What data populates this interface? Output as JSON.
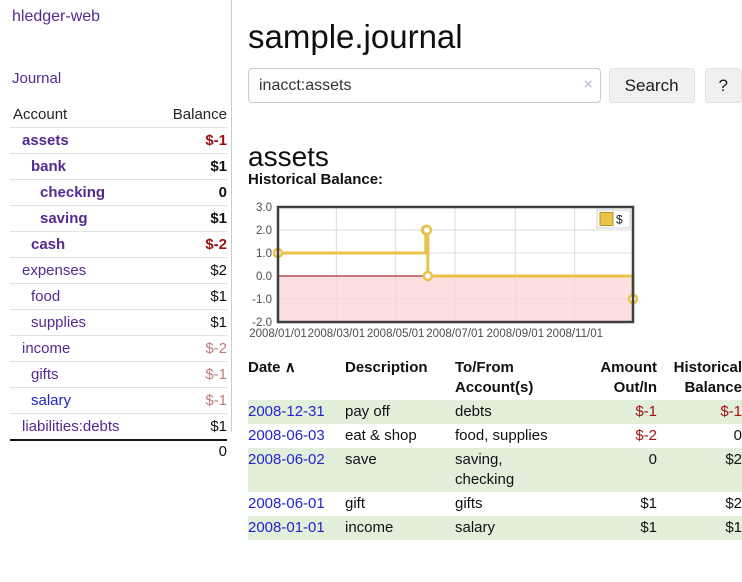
{
  "app": {
    "brand": "hledger-web"
  },
  "sidebar": {
    "journal_link": "Journal",
    "accounts_table": {
      "headers": {
        "account": "Account",
        "balance": "Balance"
      },
      "rows": [
        {
          "name": "assets",
          "balance": "$-1",
          "name_cls": "d1 bold purple",
          "bal_cls": "bold neg"
        },
        {
          "name": "bank",
          "balance": "$1",
          "name_cls": "d2 bold purple",
          "bal_cls": "bold"
        },
        {
          "name": "checking",
          "balance": "0",
          "name_cls": "d3 bold purple",
          "bal_cls": "bold"
        },
        {
          "name": "saving",
          "balance": "$1",
          "name_cls": "d3 bold purple",
          "bal_cls": "bold"
        },
        {
          "name": "cash",
          "balance": "$-2",
          "name_cls": "d2 bold purple",
          "bal_cls": "bold neg"
        },
        {
          "name": "expenses",
          "balance": "$2",
          "name_cls": "d1 purple",
          "bal_cls": ""
        },
        {
          "name": "food",
          "balance": "$1",
          "name_cls": "d2 purple",
          "bal_cls": ""
        },
        {
          "name": "supplies",
          "balance": "$1",
          "name_cls": "d2 purple",
          "bal_cls": ""
        },
        {
          "name": "income",
          "balance": "$-2",
          "name_cls": "d1 purple",
          "bal_cls": "soft-neg"
        },
        {
          "name": "gifts",
          "balance": "$-1",
          "name_cls": "d2 purple",
          "bal_cls": "soft-neg"
        },
        {
          "name": "salary",
          "balance": "$-1",
          "name_cls": "d2 blue",
          "bal_cls": "soft-neg"
        },
        {
          "name": "liabilities:debts",
          "balance": "$1",
          "name_cls": "d1 purple",
          "bal_cls": ""
        }
      ],
      "total": "0"
    }
  },
  "main": {
    "title": "sample.journal",
    "search": {
      "value": "inacct:assets",
      "clear_icon": "×",
      "button": "Search",
      "help_button": "?"
    },
    "account_heading": "assets",
    "chart_label": "Historical Balance:",
    "transactions": {
      "headers": {
        "date": "Date",
        "sort_indicator": "∧",
        "description": "Description",
        "tofrom": "To/From\nAccount(s)",
        "amount": "Amount\nOut/In",
        "balance": "Historical\nBalance"
      },
      "rows": [
        {
          "date": "2008-12-31",
          "description": "pay off",
          "accounts": "debts",
          "amount": "$-1",
          "amount_cls": "neg",
          "balance": "$-1",
          "balance_cls": "neg"
        },
        {
          "date": "2008-06-03",
          "description": "eat & shop",
          "accounts": "food, supplies",
          "amount": "$-2",
          "amount_cls": "neg",
          "balance": "0",
          "balance_cls": ""
        },
        {
          "date": "2008-06-02",
          "description": "save",
          "accounts": "saving,\nchecking",
          "amount": "0",
          "amount_cls": "",
          "balance": "$2",
          "balance_cls": ""
        },
        {
          "date": "2008-06-01",
          "description": "gift",
          "accounts": "gifts",
          "amount": "$1",
          "amount_cls": "",
          "balance": "$2",
          "balance_cls": ""
        },
        {
          "date": "2008-01-01",
          "description": "income",
          "accounts": "salary",
          "amount": "$1",
          "amount_cls": "",
          "balance": "$1",
          "balance_cls": ""
        }
      ]
    }
  },
  "chart_data": {
    "type": "line",
    "step": true,
    "title": "Historical Balance",
    "series": [
      {
        "name": "$",
        "color": "#e9c24a",
        "points": [
          [
            "2008-01-01",
            1
          ],
          [
            "2008-06-01",
            2
          ],
          [
            "2008-06-02",
            2
          ],
          [
            "2008-06-03",
            0
          ],
          [
            "2008-12-31",
            -1
          ]
        ]
      }
    ],
    "xlim": [
      "2008-01-01",
      "2008-12-31"
    ],
    "ylim": [
      -2,
      3
    ],
    "yticks": [
      3.0,
      2.0,
      1.0,
      0.0,
      -1.0,
      -2.0
    ],
    "xticks": [
      "2008/01/01",
      "2008/03/01",
      "2008/05/01",
      "2008/07/01",
      "2008/09/01",
      "2008/11/01"
    ],
    "grid": true,
    "negative_region_color": "#fbd8d8",
    "zero_line_color": "#8b0000",
    "frame_color": "#3f3f3f",
    "legend": {
      "label": "$",
      "position": "top-right"
    }
  }
}
